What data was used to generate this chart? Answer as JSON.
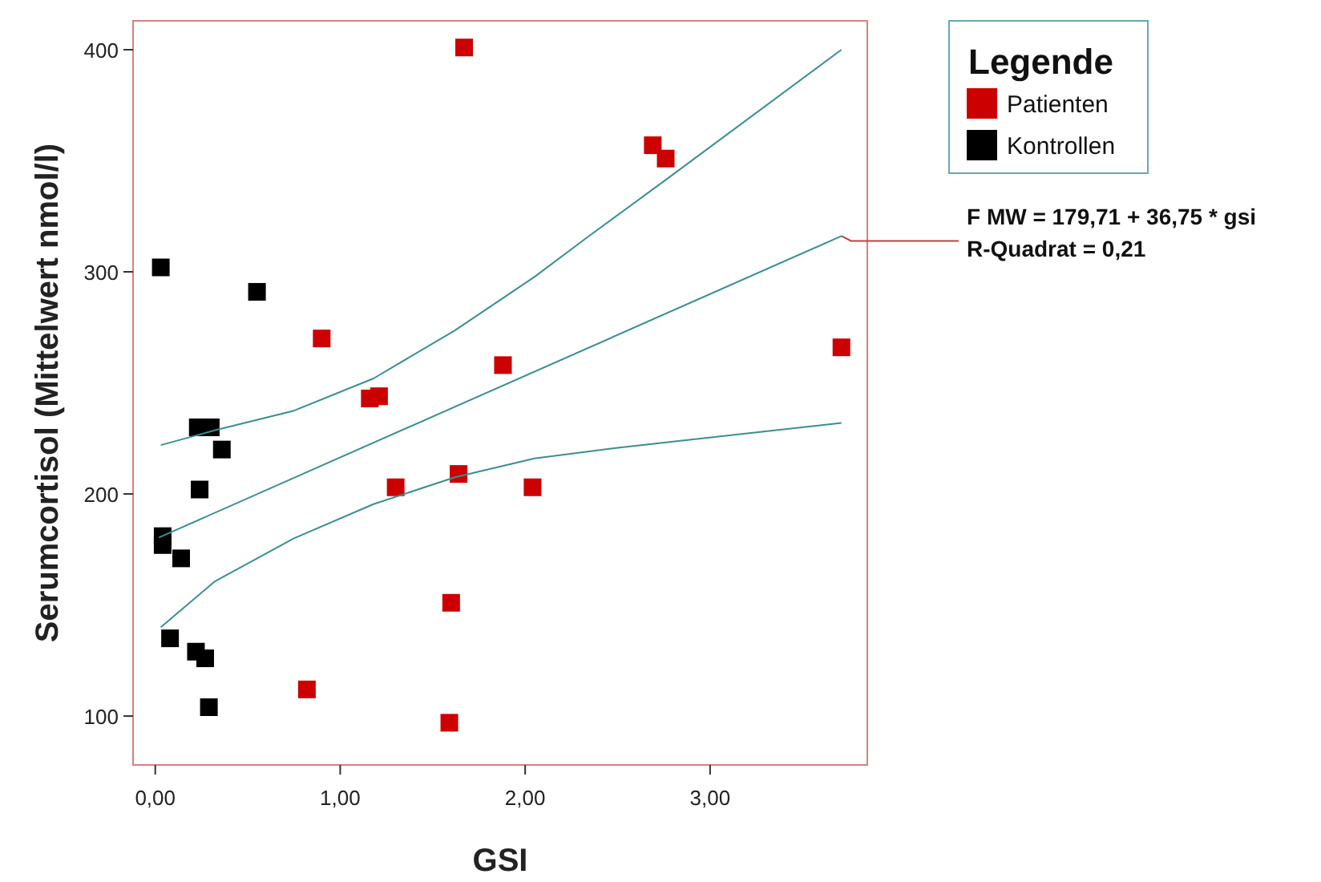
{
  "chart_data": {
    "type": "scatter",
    "xlabel": "GSI",
    "ylabel": "Serumcortisol (Mittelwert nmol/l)",
    "legend_title": "Legende",
    "legend": "top right",
    "marker": "square",
    "grid": false,
    "xlim": [
      -0.12,
      3.85
    ],
    "ylim": [
      78,
      413
    ],
    "xticks": [
      {
        "value": 0,
        "label": "0,00"
      },
      {
        "value": 1,
        "label": "1,00"
      },
      {
        "value": 2,
        "label": "2,00"
      },
      {
        "value": 3,
        "label": "3,00"
      }
    ],
    "yticks": [
      100,
      200,
      300,
      400
    ],
    "series": [
      {
        "name": "Patienten",
        "color": "#cc0000",
        "x": [
          1.67,
          2.69,
          2.76,
          0.9,
          1.16,
          1.21,
          1.88,
          1.3,
          1.64,
          2.04,
          1.6,
          0.82,
          1.59,
          3.71
        ],
        "values": [
          401,
          357,
          351,
          270,
          243,
          244,
          258,
          203,
          209,
          203,
          151,
          112,
          97,
          266
        ]
      },
      {
        "name": "Kontrollen",
        "color": "#000000",
        "x": [
          0.03,
          0.55,
          0.23,
          0.3,
          0.36,
          0.24,
          0.04,
          0.04,
          0.14,
          0.08,
          0.22,
          0.27,
          0.29
        ],
        "values": [
          302,
          291,
          230,
          230,
          220,
          202,
          181,
          177,
          171,
          135,
          129,
          126,
          104
        ]
      },
      {
        "type": "line",
        "color": "#3a8f8f",
        "marker": "none",
        "x": [
          0.02,
          3.71
        ],
        "values": [
          180.4,
          316.1
        ]
      },
      {
        "type": "line",
        "color": "#3a8f8f",
        "marker": "none",
        "x": [
          0.03,
          0.32,
          0.75,
          1.18,
          1.62,
          2.05,
          2.34,
          2.77,
          3.71
        ],
        "values": [
          222,
          228.6,
          237.5,
          252,
          273.6,
          297.7,
          315.8,
          342,
          400
        ]
      },
      {
        "type": "line",
        "color": "#3a8f8f",
        "marker": "none",
        "x": [
          0.03,
          0.32,
          0.75,
          1.18,
          1.62,
          2.05,
          2.49,
          2.8,
          3.71
        ],
        "values": [
          140,
          160.5,
          180,
          195.4,
          207.5,
          216,
          220.7,
          223.6,
          232
        ]
      }
    ],
    "annotations": [
      {
        "text": "F MW = 179,71 + 36,75 * gsi",
        "x": 3.71,
        "y": 316.1
      },
      "R-Quadrat = 0,21"
    ]
  }
}
